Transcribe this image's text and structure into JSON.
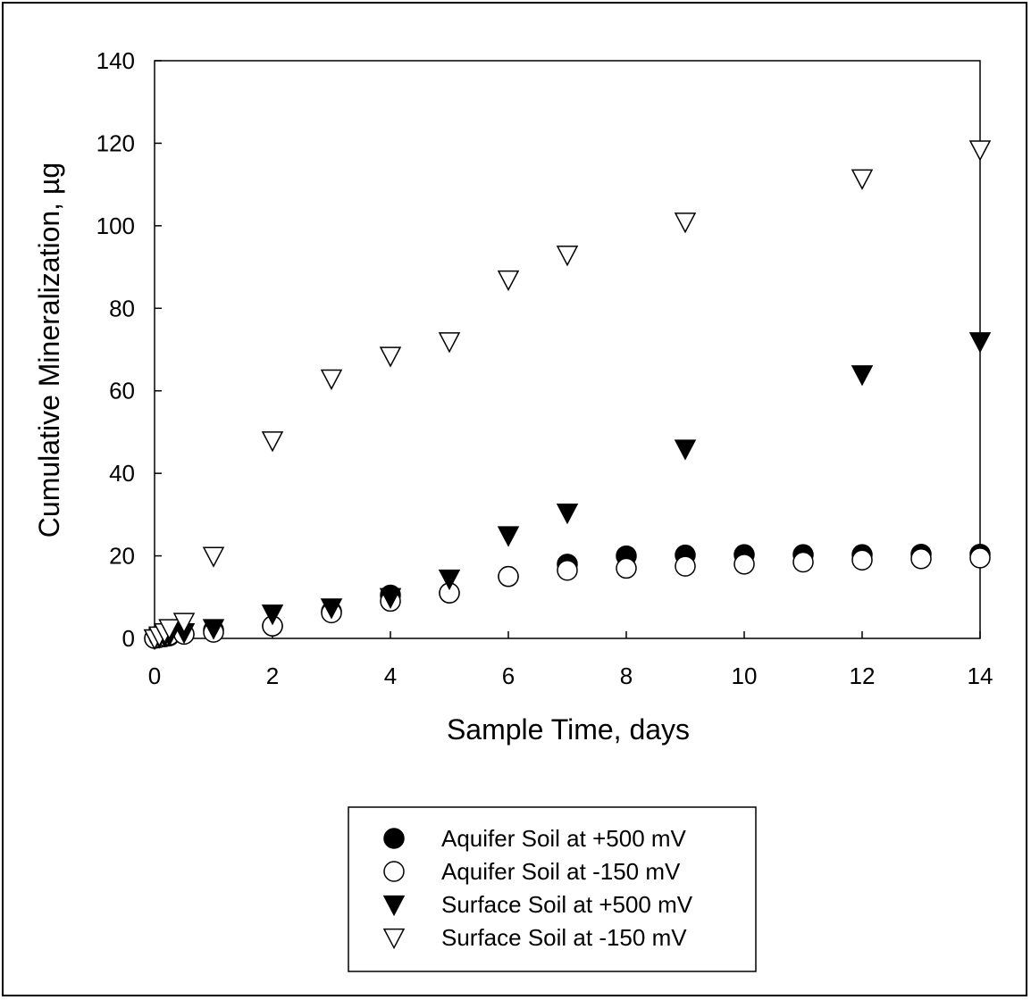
{
  "chart_data": {
    "type": "scatter",
    "title": "",
    "xlabel": "Sample Time, days",
    "ylabel": "Cumulative Mineralization, µg",
    "xlim": [
      0,
      14
    ],
    "ylim": [
      0,
      140
    ],
    "xticks": [
      "0",
      "2",
      "4",
      "6",
      "8",
      "10",
      "12",
      "14"
    ],
    "yticks": [
      "0",
      "20",
      "40",
      "60",
      "80",
      "100",
      "120",
      "140"
    ],
    "grid": false,
    "legend_position": "bottom-center",
    "series": [
      {
        "name": "Aquifer Soil at +500 mV",
        "marker": "filled-circle",
        "color": "#000000",
        "points": [
          [
            0,
            0
          ],
          [
            0.08,
            0.2
          ],
          [
            0.17,
            0.4
          ],
          [
            0.25,
            0.6
          ],
          [
            0.5,
            1
          ],
          [
            1,
            2
          ],
          [
            2,
            3
          ],
          [
            3,
            6.5
          ],
          [
            4,
            10.5
          ],
          [
            5,
            11
          ],
          [
            6,
            15
          ],
          [
            7,
            18
          ],
          [
            8,
            20
          ],
          [
            9,
            20.2
          ],
          [
            10,
            20.3
          ],
          [
            11,
            20.3
          ],
          [
            12,
            20.3
          ],
          [
            13,
            20.4
          ],
          [
            14,
            20.4
          ]
        ]
      },
      {
        "name": "Aquifer Soil at -150 mV",
        "marker": "open-circle",
        "color": "#000000",
        "points": [
          [
            0,
            0
          ],
          [
            0.08,
            0.3
          ],
          [
            0.17,
            0.6
          ],
          [
            0.25,
            0.8
          ],
          [
            0.5,
            1
          ],
          [
            1,
            1.5
          ],
          [
            2,
            3
          ],
          [
            3,
            6.2
          ],
          [
            4,
            9
          ],
          [
            5,
            11
          ],
          [
            6,
            15
          ],
          [
            7,
            16.5
          ],
          [
            8,
            17
          ],
          [
            9,
            17.5
          ],
          [
            10,
            18
          ],
          [
            11,
            18.5
          ],
          [
            12,
            19
          ],
          [
            13,
            19.3
          ],
          [
            14,
            19.5
          ]
        ]
      },
      {
        "name": "Surface Soil at +500 mV",
        "marker": "filled-triangle-down",
        "color": "#000000",
        "points": [
          [
            0,
            0
          ],
          [
            0.08,
            0.3
          ],
          [
            0.17,
            0.6
          ],
          [
            0.25,
            0.8
          ],
          [
            0.5,
            1.5
          ],
          [
            1,
            2.5
          ],
          [
            2,
            6
          ],
          [
            3,
            7.5
          ],
          [
            4,
            10
          ],
          [
            5,
            14.5
          ],
          [
            6,
            25
          ],
          [
            7,
            30.5
          ],
          [
            9,
            46
          ],
          [
            12,
            64
          ],
          [
            14,
            72
          ]
        ]
      },
      {
        "name": "Surface Soil at -150 mV",
        "marker": "open-triangle-down",
        "color": "#000000",
        "points": [
          [
            0,
            0
          ],
          [
            0.08,
            0.7
          ],
          [
            0.17,
            1.5
          ],
          [
            0.25,
            2.5
          ],
          [
            0.5,
            4
          ],
          [
            1,
            20
          ],
          [
            2,
            48
          ],
          [
            3,
            63
          ],
          [
            4,
            68.5
          ],
          [
            5,
            72
          ],
          [
            6,
            87
          ],
          [
            7,
            93
          ],
          [
            9,
            101
          ],
          [
            12,
            111.5
          ],
          [
            14,
            118.5
          ]
        ]
      }
    ]
  }
}
